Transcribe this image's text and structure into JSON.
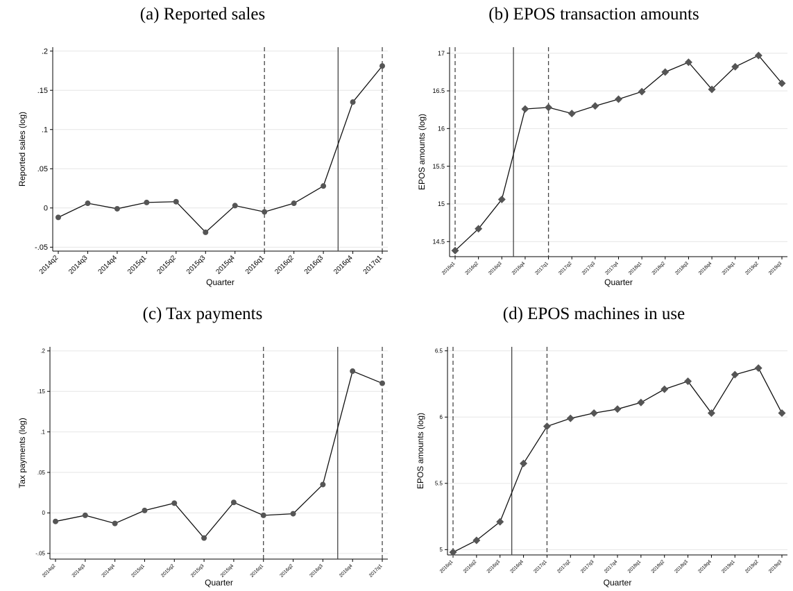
{
  "chart_data": [
    {
      "type": "line",
      "title": "(a) Reported sales",
      "x_label": "Quarter",
      "y_label": "Reported sales (log)",
      "categories": [
        "2014q2",
        "2014q3",
        "2014q4",
        "2015q1",
        "2015q2",
        "2015q3",
        "2015q4",
        "2016q1",
        "2016q2",
        "2016q3",
        "2016q4",
        "2017q1"
      ],
      "values": [
        -0.012,
        0.006,
        -0.001,
        0.007,
        0.008,
        -0.031,
        0.003,
        -0.005,
        0.006,
        0.028,
        0.135,
        0.181
      ],
      "ylim": [
        -0.055,
        0.205
      ],
      "yticks": [
        {
          "value": -0.05,
          "label": "-.05"
        },
        0,
        {
          "value": 0.05,
          "label": ".05"
        },
        {
          "value": 0.1,
          "label": ".1"
        },
        {
          "value": 0.15,
          "label": ".15"
        },
        {
          "value": 0.2,
          "label": ".2"
        }
      ],
      "grid": true,
      "marker": "circle",
      "color": "#555555",
      "reference_lines": [
        {
          "x": 7,
          "style": "dashed"
        },
        {
          "x": 9.5,
          "style": "solid"
        },
        {
          "x": 11,
          "style": "dashed"
        }
      ]
    },
    {
      "type": "line",
      "title": "(b) EPOS transaction amounts",
      "x_label": "Quarter",
      "y_label": "EPOS amounts (log)",
      "categories": [
        "2016q1",
        "2016q2",
        "2016q3",
        "2016q4",
        "2017q1",
        "2017q2",
        "2017q3",
        "2017q4",
        "2018q1",
        "2018q2",
        "2018q3",
        "2018q4",
        "2019q1",
        "2019q2",
        "2019q3"
      ],
      "values": [
        14.38,
        14.67,
        15.06,
        16.26,
        16.28,
        16.2,
        16.3,
        16.39,
        16.49,
        16.75,
        16.88,
        16.52,
        16.82,
        16.97,
        16.6
      ],
      "ylim": [
        14.3,
        17.08
      ],
      "yticks": [
        14.5,
        15,
        15.5,
        16,
        16.5,
        17
      ],
      "grid": true,
      "marker": "diamond",
      "color": "#555555",
      "reference_lines": [
        {
          "x": 0,
          "style": "dashed"
        },
        {
          "x": 2.5,
          "style": "solid"
        },
        {
          "x": 4,
          "style": "dashed"
        }
      ]
    },
    {
      "type": "line",
      "title": "(c) Tax payments",
      "x_label": "Quarter",
      "y_label": "Tax payments (log)",
      "categories": [
        "2014q2",
        "2014q3",
        "2014q4",
        "2015q1",
        "2015q2",
        "2015q3",
        "2015q4",
        "2016q1",
        "2016q2",
        "2016q3",
        "2016q4",
        "2017q1"
      ],
      "values": [
        -0.0105,
        -0.003,
        -0.013,
        0.003,
        0.012,
        -0.031,
        0.013,
        -0.003,
        -0.001,
        0.035,
        0.175,
        0.16
      ],
      "ylim": [
        -0.057,
        0.205
      ],
      "yticks": [
        {
          "value": -0.05,
          "label": "-.05"
        },
        0,
        {
          "value": 0.05,
          "label": ".05"
        },
        {
          "value": 0.1,
          "label": ".1"
        },
        {
          "value": 0.15,
          "label": ".15"
        },
        {
          "value": 0.2,
          "label": ".2"
        }
      ],
      "grid": true,
      "marker": "circle",
      "color": "#555555",
      "reference_lines": [
        {
          "x": 7,
          "style": "dashed"
        },
        {
          "x": 9.5,
          "style": "solid"
        },
        {
          "x": 11,
          "style": "dashed"
        }
      ]
    },
    {
      "type": "line",
      "title": "(d) EPOS machines in use",
      "x_label": "Quarter",
      "y_label": "EPOS amounts (log)",
      "categories": [
        "2016q1",
        "2016q2",
        "2016q3",
        "2016q4",
        "2017q1",
        "2017q2",
        "2017q3",
        "2017q4",
        "2018q1",
        "2018q2",
        "2018q3",
        "2018q4",
        "2019q1",
        "2019q2",
        "2019q3"
      ],
      "values": [
        4.98,
        5.07,
        5.21,
        5.65,
        5.93,
        5.99,
        6.03,
        6.06,
        6.11,
        6.21,
        6.27,
        6.03,
        6.32,
        6.37,
        6.03
      ],
      "ylim": [
        4.96,
        6.53
      ],
      "yticks": [
        5,
        5.5,
        6,
        6.5
      ],
      "grid": true,
      "marker": "diamond",
      "color": "#555555",
      "reference_lines": [
        {
          "x": 0,
          "style": "dashed"
        },
        {
          "x": 2.5,
          "style": "solid"
        },
        {
          "x": 4,
          "style": "dashed"
        }
      ]
    }
  ]
}
